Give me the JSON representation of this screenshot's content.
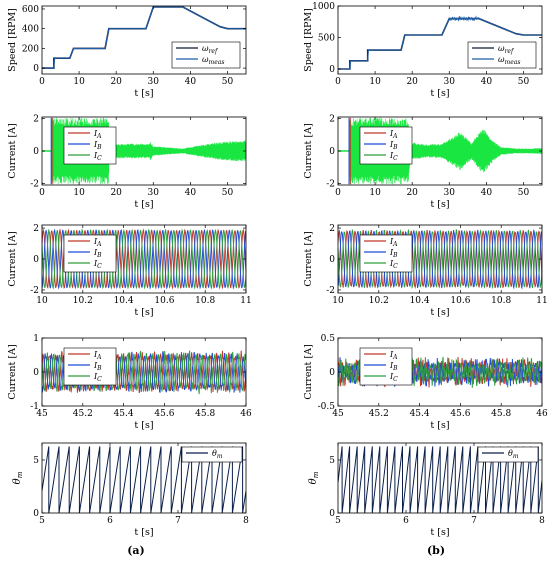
{
  "panel_labels": [
    "(a)",
    "(b)"
  ],
  "colors": {
    "ref": "#0b1a33",
    "meas": "#1f5ea8",
    "ia": "#c0392b",
    "ib": "#1f4fd8",
    "ic": "#2e9e3c",
    "bright_green": "#19e640",
    "theta": "#0b1f4a"
  },
  "chart_data": [
    {
      "id": "a1",
      "type": "line",
      "column": "a",
      "row": 0,
      "xlabel": "t [s]",
      "ylabel": "Speed [RPM]",
      "xlim": [
        0,
        55
      ],
      "ylim": [
        -60,
        630
      ],
      "xticks": [
        0,
        10,
        20,
        30,
        40,
        50
      ],
      "yticks": [
        0,
        200,
        400,
        600
      ],
      "legend": [
        "ωref",
        "ωmeas"
      ],
      "legend_position": "right",
      "series": [
        {
          "name": "ωref",
          "kind": "ref",
          "x": [
            0,
            3.2,
            3.2,
            5,
            5,
            7.5,
            8.5,
            13,
            13,
            17,
            18,
            28,
            30,
            38,
            48,
            50,
            55
          ],
          "y": [
            0,
            0,
            100,
            100,
            100,
            100,
            200,
            200,
            200,
            200,
            400,
            400,
            620,
            620,
            420,
            400,
            400
          ]
        },
        {
          "name": "ωmeas",
          "kind": "meas",
          "x": [
            0,
            3.2,
            3.4,
            5,
            7.5,
            8.5,
            13,
            17,
            18,
            28,
            30,
            38,
            48,
            50,
            55
          ],
          "y": [
            0,
            0,
            100,
            100,
            100,
            200,
            200,
            200,
            400,
            400,
            620,
            620,
            420,
            400,
            400
          ]
        }
      ]
    },
    {
      "id": "b1",
      "type": "line",
      "column": "b",
      "row": 0,
      "xlabel": "t [s]",
      "ylabel": "Speed [RPM]",
      "xlim": [
        0,
        55
      ],
      "ylim": [
        -80,
        1000
      ],
      "xticks": [
        0,
        10,
        20,
        30,
        40,
        50
      ],
      "yticks": [
        0,
        500,
        1000
      ],
      "legend": [
        "ωref",
        "ωmeas"
      ],
      "legend_position": "right",
      "series": [
        {
          "name": "ωref",
          "kind": "ref",
          "x": [
            0,
            3.2,
            3.2,
            5,
            8,
            8,
            13,
            13,
            17,
            18,
            28,
            30,
            38,
            48,
            50,
            55
          ],
          "y": [
            0,
            0,
            130,
            130,
            130,
            300,
            300,
            300,
            300,
            540,
            540,
            800,
            800,
            560,
            540,
            540
          ]
        },
        {
          "name": "ωmeas",
          "kind": "meas",
          "x": [
            0,
            3.2,
            3.4,
            5,
            8,
            8.2,
            13,
            17,
            18,
            28,
            30,
            38,
            48,
            50,
            55
          ],
          "y": [
            0,
            0,
            130,
            130,
            130,
            300,
            300,
            300,
            540,
            540,
            800,
            800,
            560,
            540,
            540
          ]
        }
      ]
    },
    {
      "id": "a2",
      "type": "area",
      "column": "a",
      "row": 1,
      "xlabel": "t [s]",
      "ylabel": "Current [A]",
      "xlim": [
        0,
        55
      ],
      "ylim": [
        -2.1,
        2.1
      ],
      "xticks": [
        0,
        10,
        20,
        30,
        40,
        50
      ],
      "yticks": [
        -2,
        0,
        2
      ],
      "legend": [
        "IA",
        "IB",
        "IC"
      ],
      "legend_position": "left",
      "series": [
        {
          "name": "IC",
          "kind": "envelope",
          "x": [
            0,
            2.5,
            2.5,
            18,
            18.2,
            19,
            29,
            29.2,
            30,
            38,
            40,
            45,
            50,
            55
          ],
          "y": [
            0.05,
            0.05,
            2.05,
            2.05,
            0.55,
            0.45,
            0.45,
            0.6,
            0.3,
            0.15,
            0.25,
            0.45,
            0.6,
            0.65
          ]
        }
      ]
    },
    {
      "id": "b2",
      "type": "area",
      "column": "b",
      "row": 1,
      "xlabel": "t [s]",
      "ylabel": "Current [A]",
      "xlim": [
        0,
        55
      ],
      "ylim": [
        -2.1,
        2.1
      ],
      "xticks": [
        0,
        10,
        20,
        30,
        40,
        50
      ],
      "yticks": [
        -2,
        0,
        2
      ],
      "legend": [
        "IA",
        "IB",
        "IC"
      ],
      "legend_position": "left",
      "series": [
        {
          "name": "IC",
          "kind": "envelope",
          "x": [
            0,
            3,
            3,
            19,
            19.5,
            24,
            28,
            30,
            33,
            36,
            39,
            42,
            44,
            48,
            52,
            55
          ],
          "y": [
            0.05,
            0.05,
            2.05,
            2.05,
            0.55,
            0.4,
            0.45,
            0.75,
            1.2,
            0.5,
            1.45,
            0.6,
            0.25,
            0.15,
            0.15,
            0.2
          ]
        }
      ]
    },
    {
      "id": "a3",
      "type": "line",
      "column": "a",
      "row": 2,
      "xlabel": "t [s]",
      "ylabel": "Current [A]",
      "xlim": [
        10,
        11
      ],
      "ylim": [
        -2.2,
        2.2
      ],
      "xticks": [
        10,
        10.2,
        10.4,
        10.6,
        10.8,
        11
      ],
      "yticks": [
        -2,
        0,
        2
      ],
      "legend": [
        "IA",
        "IB",
        "IC"
      ],
      "legend_position": "left",
      "waveform": {
        "amplitude": 1.85,
        "cycles": 24.5,
        "phase_deg": 30,
        "noise": 0.03
      }
    },
    {
      "id": "b3",
      "type": "line",
      "column": "b",
      "row": 2,
      "xlabel": "t [s]",
      "ylabel": "Current [A]",
      "xlim": [
        10,
        11
      ],
      "ylim": [
        -2.2,
        2.2
      ],
      "xticks": [
        10,
        10.2,
        10.4,
        10.6,
        10.8,
        11
      ],
      "yticks": [
        -2,
        0,
        2
      ],
      "legend": [
        "IA",
        "IB",
        "IC"
      ],
      "legend_position": "left",
      "waveform": {
        "amplitude": 1.8,
        "cycles": 25.5,
        "phase_deg": 40,
        "noise": 0.06
      }
    },
    {
      "id": "a4",
      "type": "line",
      "column": "a",
      "row": 3,
      "xlabel": "t [s]",
      "ylabel": "Current [A]",
      "xlim": [
        45,
        46
      ],
      "ylim": [
        -1,
        1
      ],
      "xticks": [
        45,
        45.2,
        45.4,
        45.6,
        45.8,
        46
      ],
      "yticks": [
        -1,
        0,
        1
      ],
      "legend": [
        "IA",
        "IB",
        "IC"
      ],
      "legend_position": "left",
      "waveform": {
        "amplitude": 0.5,
        "cycles": 33,
        "phase_deg": 10,
        "noise": 0.09
      }
    },
    {
      "id": "b4",
      "type": "line",
      "column": "b",
      "row": 3,
      "xlabel": "t [s]",
      "ylabel": "Current [A]",
      "xlim": [
        45,
        46
      ],
      "ylim": [
        -0.5,
        0.5
      ],
      "xticks": [
        45,
        45.2,
        45.4,
        45.6,
        45.8,
        46
      ],
      "yticks": [
        -0.5,
        0,
        0.5
      ],
      "legend": [
        "IA",
        "IB",
        "IC"
      ],
      "legend_position": "left",
      "waveform": {
        "amplitude": 0.12,
        "cycles": 46,
        "phase_deg": 70,
        "noise": 0.07
      }
    },
    {
      "id": "a5",
      "type": "line",
      "column": "a",
      "row": 4,
      "xlabel": "t [s]",
      "ylabel": "θm",
      "xlim": [
        5,
        8
      ],
      "ylim": [
        0,
        6.6
      ],
      "xticks": [
        5,
        6,
        7,
        8
      ],
      "yticks": [
        0,
        5
      ],
      "legend": [
        "θm"
      ],
      "legend_position": "top-right",
      "sawtooth": {
        "period": 0.15,
        "offset": 0.1,
        "max": 6.283
      }
    },
    {
      "id": "b5",
      "type": "line",
      "column": "b",
      "row": 4,
      "xlabel": "t [s]",
      "ylabel": "θm",
      "xlim": [
        5,
        8
      ],
      "ylim": [
        0,
        6.6
      ],
      "xticks": [
        5,
        6,
        7,
        8
      ],
      "yticks": [
        0,
        5
      ],
      "legend": [
        "θm"
      ],
      "legend_position": "top-right",
      "sawtooth": {
        "period": 0.111,
        "offset": 0.06,
        "max": 6.283
      }
    }
  ]
}
